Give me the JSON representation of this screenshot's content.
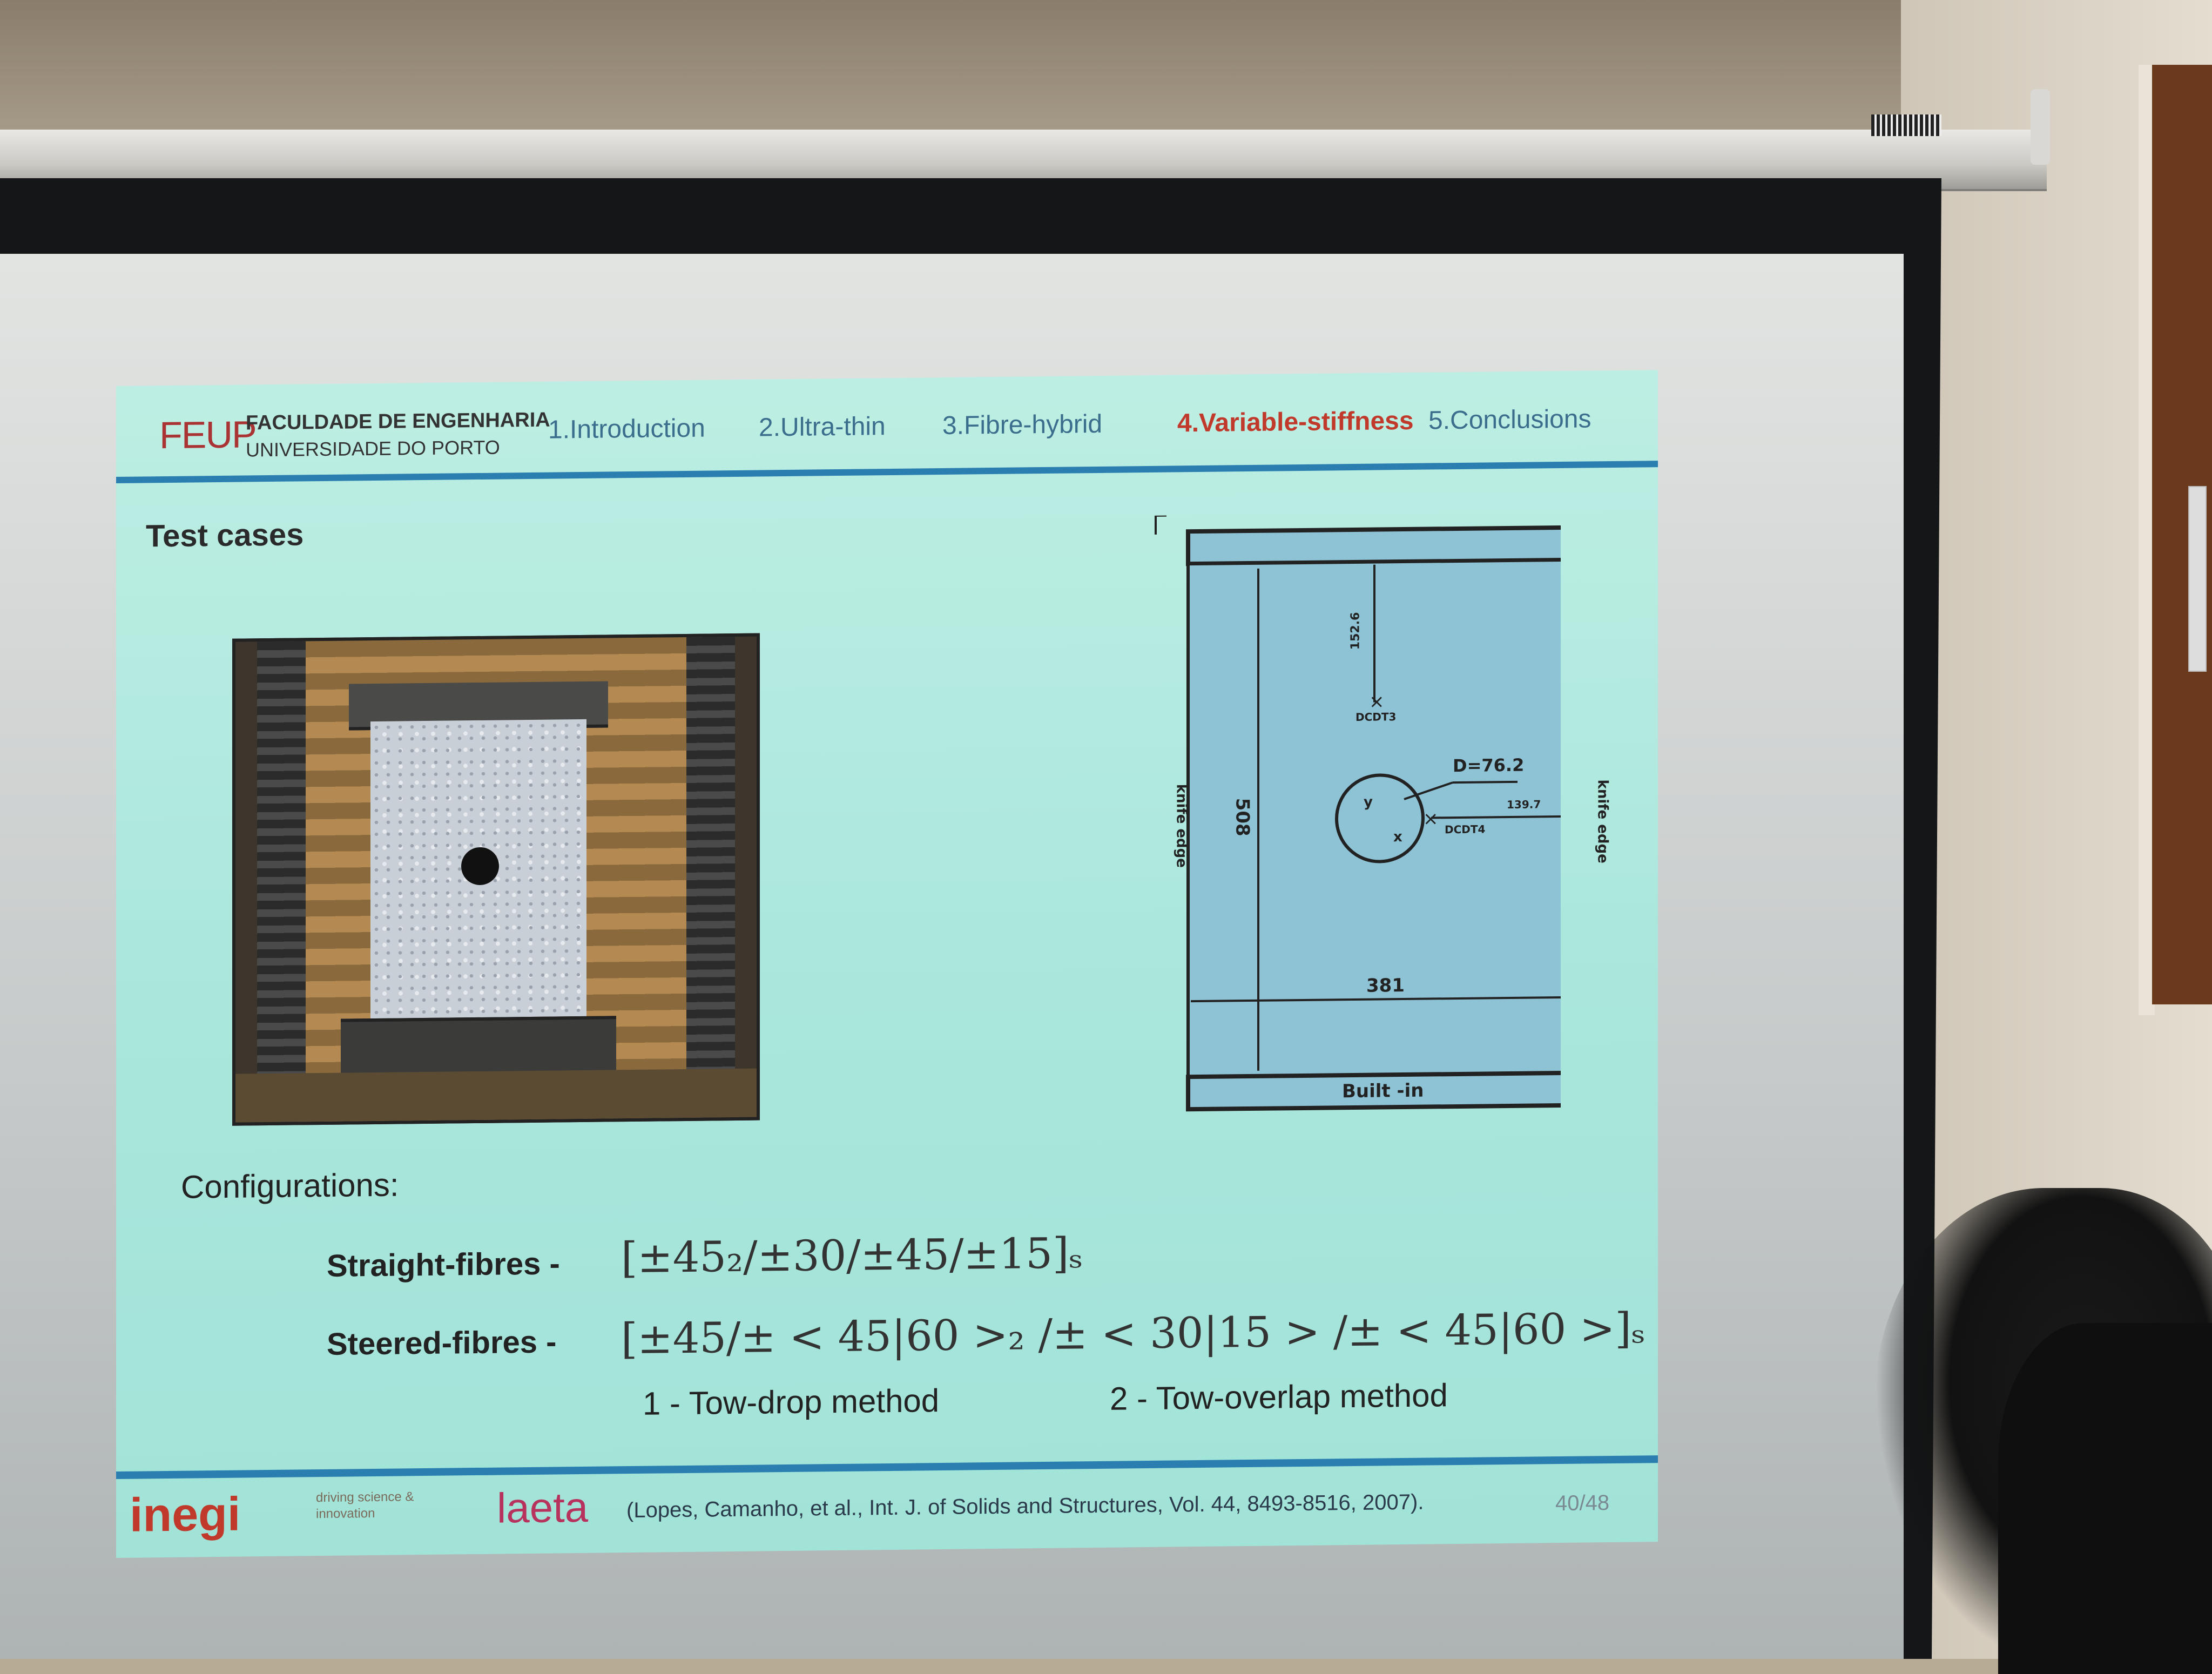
{
  "slide": {
    "header": {
      "logo": "FEUP",
      "faculty_line1": "FACULDADE DE ENGENHARIA",
      "faculty_line2": "UNIVERSIDADE DO PORTO",
      "nav": [
        {
          "label": "1.Introduction"
        },
        {
          "label": "2.Ultra-thin"
        },
        {
          "label": "3.Fibre-hybrid"
        },
        {
          "label": "4.Variable-stiffness"
        },
        {
          "label": "5.Conclusions"
        }
      ],
      "active_nav": "4.Variable-stiffness"
    },
    "title": "Test cases",
    "diagram": {
      "top_dim": "152.6",
      "point_top": "DCDT3",
      "diameter": "D=76.2",
      "right_dim": "139.7",
      "point_right": "DCDT4",
      "height": "508",
      "width": "381",
      "left_label": "knife edge",
      "right_label": "knife edge",
      "bottom_label": "Built -in",
      "axis_y": "y",
      "axis_x": "x"
    },
    "configurations_label": "Configurations:",
    "straight_label": "Straight-fibres -",
    "straight_formula": "[±45₂/±30/±45/±15]ₛ",
    "steered_label": "Steered-fibres -",
    "steered_formula": "[±45/± < 45|60 >₂ /± < 30|15 > /± < 45|60 >]ₛ",
    "method1": "1 - Tow-drop method",
    "method2": "2 - Tow-overlap method",
    "footer": {
      "inegi": "inegi",
      "inegi_tagline": "driving science & innovation",
      "laeta": "laeta",
      "citation": "(Lopes, Camanho, et al., Int. J. of Solids and Structures, Vol. 44, 8493-8516, 2007).",
      "page": "40/48"
    }
  },
  "colors": {
    "slide_bg": "#a9e6dc",
    "accent_blue": "#2a7fb0",
    "active_red": "#c0392b",
    "diagram_fill": "#8ec3d6"
  }
}
